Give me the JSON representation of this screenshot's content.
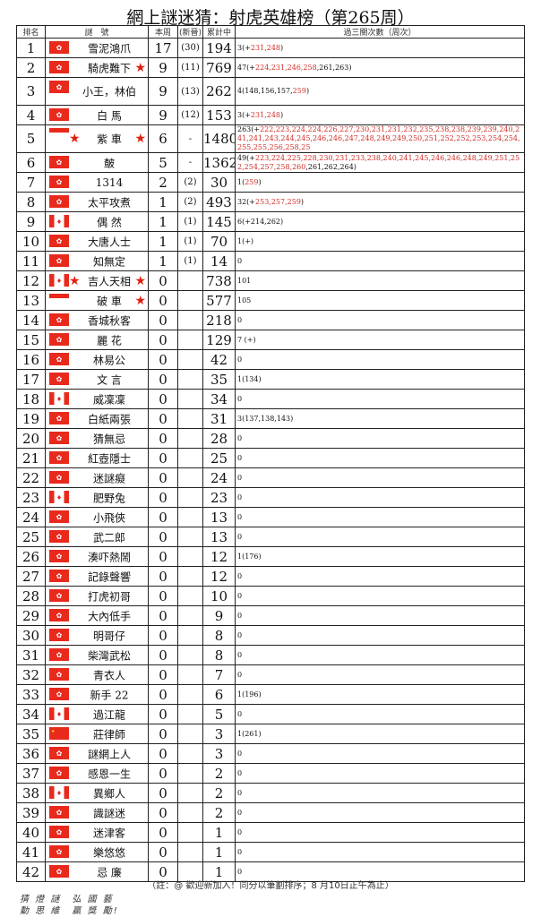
{
  "title": "網上謎迷猜：射虎英雄榜（第265周）",
  "headers": {
    "rank": "排名",
    "name": "謎　號",
    "week": "本周",
    "new": "(新晉)",
    "total": "累計中",
    "history": "過三關次數（周次）"
  },
  "rows": [
    {
      "rank": "1",
      "flag": "hk",
      "name": "雪泥鴻爪",
      "week": "17",
      "new": "(30)",
      "total": "194",
      "history": [
        [
          "3(+",
          0
        ],
        [
          "231,248",
          1
        ],
        [
          ")",
          0
        ]
      ]
    },
    {
      "rank": "2",
      "flag": "hk",
      "name": "騎虎難下",
      "star_after": true,
      "week": "9",
      "new": "(11)",
      "total": "769",
      "history": [
        [
          "47(+",
          0
        ],
        [
          "224,231,246,258",
          1
        ],
        [
          ",261,263)",
          0
        ]
      ]
    },
    {
      "rank": "3",
      "flag": "hk",
      "name": "小王，林伯",
      "week": "9",
      "new": "(13)",
      "total": "262",
      "history": [
        [
          "4(148,156,157,",
          0
        ],
        [
          "259",
          1
        ],
        [
          ")",
          0
        ]
      ]
    },
    {
      "rank": "4",
      "flag": "hk",
      "name": "白 馬",
      "week": "9",
      "new": "(12)",
      "total": "153",
      "history": [
        [
          "3(+",
          0
        ],
        [
          "231,248",
          1
        ],
        [
          ")",
          0
        ]
      ]
    },
    {
      "rank": "5",
      "flag": "sg",
      "name": "紫 車",
      "star_before": true,
      "star_after": true,
      "week": "6",
      "new": "-",
      "total": "1480",
      "history": [
        [
          "263(+",
          0
        ],
        [
          "222,223,224,224,226,227,230,231,231,232,235,238,238,239,239,240,241,241,243,244,245,246,246,247,248,249,249,250,251,252,252,253,254,254,255,255,256,258,25",
          1
        ]
      ]
    },
    {
      "rank": "6",
      "flag": "hk",
      "name": "皶",
      "week": "5",
      "new": "-",
      "total": "1362",
      "history": [
        [
          "49(+",
          0
        ],
        [
          "223,224,225,228,230,231,233,238,240,241,245,246,246,248,249,251,252,254,257,258,260",
          1
        ],
        [
          ",261,262,264)",
          0
        ]
      ]
    },
    {
      "rank": "7",
      "flag": "hk",
      "name": "1314",
      "week": "2",
      "new": "(2)",
      "total": "30",
      "history": [
        [
          "1(",
          0
        ],
        [
          "259",
          1
        ],
        [
          ")",
          0
        ]
      ]
    },
    {
      "rank": "8",
      "flag": "hk",
      "name": "太平攻煮",
      "week": "1",
      "new": "(2)",
      "total": "493",
      "history": [
        [
          "32(+",
          0
        ],
        [
          "253,257,259",
          1
        ],
        [
          ")",
          0
        ]
      ]
    },
    {
      "rank": "9",
      "flag": "ca",
      "name": "偶 然",
      "week": "1",
      "new": "(1)",
      "total": "145",
      "history": [
        [
          "6(+214,262)",
          0
        ]
      ]
    },
    {
      "rank": "10",
      "flag": "hk",
      "name": "大唐人士",
      "week": "1",
      "new": "(1)",
      "total": "70",
      "history": [
        [
          "1(+)",
          0
        ]
      ]
    },
    {
      "rank": "11",
      "flag": "hk",
      "name": "知無定",
      "week": "1",
      "new": "(1)",
      "total": "14",
      "history": [
        [
          "0",
          0
        ]
      ]
    },
    {
      "rank": "12",
      "flag": "ca",
      "name": "吉人天相",
      "star_before": true,
      "star_after": true,
      "week": "0",
      "new": "",
      "total": "738",
      "history": [
        [
          "101",
          0
        ]
      ]
    },
    {
      "rank": "13",
      "flag": "sg",
      "name": "破 車",
      "star_after": true,
      "week": "0",
      "new": "",
      "total": "577",
      "history": [
        [
          "105",
          0
        ]
      ]
    },
    {
      "rank": "14",
      "flag": "hk",
      "name": "香城秋客",
      "week": "0",
      "new": "",
      "total": "218",
      "history": [
        [
          "0",
          0
        ]
      ]
    },
    {
      "rank": "15",
      "flag": "hk",
      "name": "麗 花",
      "week": "0",
      "new": "",
      "total": "129",
      "history": [
        [
          "7 (+)",
          0
        ]
      ]
    },
    {
      "rank": "16",
      "flag": "hk",
      "name": "林易公",
      "week": "0",
      "new": "",
      "total": "42",
      "history": [
        [
          "0",
          0
        ]
      ]
    },
    {
      "rank": "17",
      "flag": "hk",
      "name": "文 言",
      "week": "0",
      "new": "",
      "total": "35",
      "history": [
        [
          "1(134)",
          0
        ]
      ]
    },
    {
      "rank": "18",
      "flag": "ca",
      "name": "威凜凜",
      "week": "0",
      "new": "",
      "total": "34",
      "history": [
        [
          "0",
          0
        ]
      ]
    },
    {
      "rank": "19",
      "flag": "hk",
      "name": "白紙兩張",
      "week": "0",
      "new": "",
      "total": "31",
      "history": [
        [
          "3(137,138,143)",
          0
        ]
      ]
    },
    {
      "rank": "20",
      "flag": "hk",
      "name": "猜無忌",
      "week": "0",
      "new": "",
      "total": "28",
      "history": [
        [
          "0",
          0
        ]
      ]
    },
    {
      "rank": "21",
      "flag": "hk",
      "name": "紅壺隱士",
      "week": "0",
      "new": "",
      "total": "25",
      "history": [
        [
          "0",
          0
        ]
      ]
    },
    {
      "rank": "22",
      "flag": "hk",
      "name": "迷謎癡",
      "week": "0",
      "new": "",
      "total": "24",
      "history": [
        [
          "0",
          0
        ]
      ]
    },
    {
      "rank": "23",
      "flag": "ca",
      "name": "肥野兔",
      "week": "0",
      "new": "",
      "total": "23",
      "history": [
        [
          "0",
          0
        ]
      ]
    },
    {
      "rank": "24",
      "flag": "hk",
      "name": "小飛俠",
      "week": "0",
      "new": "",
      "total": "13",
      "history": [
        [
          "0",
          0
        ]
      ]
    },
    {
      "rank": "25",
      "flag": "hk",
      "name": "武二郎",
      "week": "0",
      "new": "",
      "total": "13",
      "history": [
        [
          "0",
          0
        ]
      ]
    },
    {
      "rank": "26",
      "flag": "hk",
      "name": "湊吓熱鬧",
      "week": "0",
      "new": "",
      "total": "12",
      "history": [
        [
          "1(176)",
          0
        ]
      ]
    },
    {
      "rank": "27",
      "flag": "hk",
      "name": "記錄聲響",
      "week": "0",
      "new": "",
      "total": "12",
      "history": [
        [
          "0",
          0
        ]
      ]
    },
    {
      "rank": "28",
      "flag": "hk",
      "name": "打虎初哥",
      "week": "0",
      "new": "",
      "total": "10",
      "history": [
        [
          "0",
          0
        ]
      ]
    },
    {
      "rank": "29",
      "flag": "hk",
      "name": "大內低手",
      "week": "0",
      "new": "",
      "total": "9",
      "history": [
        [
          "0",
          0
        ]
      ]
    },
    {
      "rank": "30",
      "flag": "hk",
      "name": "明哥仔",
      "week": "0",
      "new": "",
      "total": "8",
      "history": [
        [
          "0",
          0
        ]
      ]
    },
    {
      "rank": "31",
      "flag": "hk",
      "name": "柴灣武松",
      "week": "0",
      "new": "",
      "total": "8",
      "history": [
        [
          "0",
          0
        ]
      ]
    },
    {
      "rank": "32",
      "flag": "hk",
      "name": "青衣人",
      "week": "0",
      "new": "",
      "total": "7",
      "history": [
        [
          "0",
          0
        ]
      ]
    },
    {
      "rank": "33",
      "flag": "hk",
      "name": "新手 22",
      "week": "0",
      "new": "",
      "total": "6",
      "history": [
        [
          "1(196)",
          0
        ]
      ]
    },
    {
      "rank": "34",
      "flag": "ca",
      "name": "過江龍",
      "week": "0",
      "new": "",
      "total": "5",
      "history": [
        [
          "0",
          0
        ]
      ]
    },
    {
      "rank": "35",
      "flag": "cn",
      "name": "莊律師",
      "week": "0",
      "new": "",
      "total": "3",
      "history": [
        [
          "1(261)",
          0
        ]
      ]
    },
    {
      "rank": "36",
      "flag": "hk",
      "name": "謎網上人",
      "week": "0",
      "new": "",
      "total": "3",
      "history": [
        [
          "0",
          0
        ]
      ]
    },
    {
      "rank": "37",
      "flag": "hk",
      "name": "感恩一生",
      "week": "0",
      "new": "",
      "total": "2",
      "history": [
        [
          "0",
          0
        ]
      ]
    },
    {
      "rank": "38",
      "flag": "ca",
      "name": "異鄉人",
      "week": "0",
      "new": "",
      "total": "2",
      "history": [
        [
          "0",
          0
        ]
      ]
    },
    {
      "rank": "39",
      "flag": "hk",
      "name": "識謎迷",
      "week": "0",
      "new": "",
      "total": "2",
      "history": [
        [
          "0",
          0
        ]
      ]
    },
    {
      "rank": "40",
      "flag": "hk",
      "name": "迷津客",
      "week": "0",
      "new": "",
      "total": "1",
      "history": [
        [
          "0",
          0
        ]
      ]
    },
    {
      "rank": "41",
      "flag": "hk",
      "name": "樂悠悠",
      "week": "0",
      "new": "",
      "total": "1",
      "history": [
        [
          "0",
          0
        ]
      ]
    },
    {
      "rank": "42",
      "flag": "hk",
      "name": "忌 廉",
      "week": "0",
      "new": "",
      "total": "1",
      "history": [
        [
          "0",
          0
        ]
      ]
    }
  ],
  "note": "（註：@ 歡迎新加入！同分以筆劃排序；8 月10日正午為止）",
  "slogan": [
    "猜 燈 謎　弘 國 藝",
    "動 思 維　贏 獎 勵!"
  ],
  "colors": {
    "flag_red": "#e8291c",
    "history_red": "#d0302a"
  }
}
